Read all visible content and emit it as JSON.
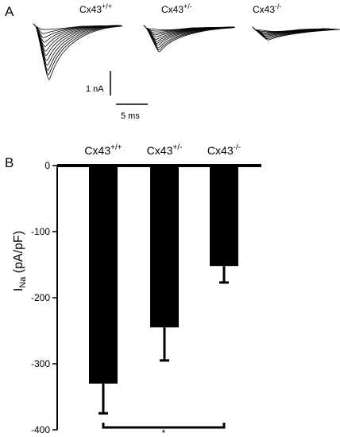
{
  "panel_a": {
    "letter": "A",
    "groups": [
      {
        "base": "Cx43",
        "sup": "+/+",
        "peaks": [
          0.16,
          0.33,
          0.5,
          0.68,
          0.86,
          1.04,
          1.22,
          1.42,
          1.62,
          1.82,
          2.0,
          2.2
        ]
      },
      {
        "base": "Cx43",
        "sup": "+/-",
        "peaks": [
          0.08,
          0.16,
          0.24,
          0.32,
          0.4,
          0.5,
          0.58,
          0.66,
          0.74,
          0.84,
          0.92,
          1.0
        ]
      },
      {
        "base": "Cx43",
        "sup": "-/-",
        "peaks": [
          0.06,
          0.11,
          0.16,
          0.21,
          0.26,
          0.31,
          0.36,
          0.41,
          0.46
        ]
      }
    ],
    "scale_current": "1 nA",
    "scale_time": "5 ms"
  },
  "chart_data": {
    "type": "bar",
    "panel": "B",
    "categories": [
      {
        "base": "Cx43",
        "sup": "+/+"
      },
      {
        "base": "Cx43",
        "sup": "+/-"
      },
      {
        "base": "Cx43",
        "sup": "-/-"
      }
    ],
    "values": [
      -330,
      -245,
      -152
    ],
    "errors": [
      45,
      50,
      25
    ],
    "ylabel": {
      "main": "I",
      "sub": "Na",
      "rest": " (pA/pF)"
    },
    "ylim": [
      -400,
      0
    ],
    "yticks": [
      0,
      -100,
      -200,
      -300,
      -400
    ],
    "significance": {
      "from": 0,
      "to": 2,
      "label": "*"
    },
    "bar_color": "#000000"
  }
}
